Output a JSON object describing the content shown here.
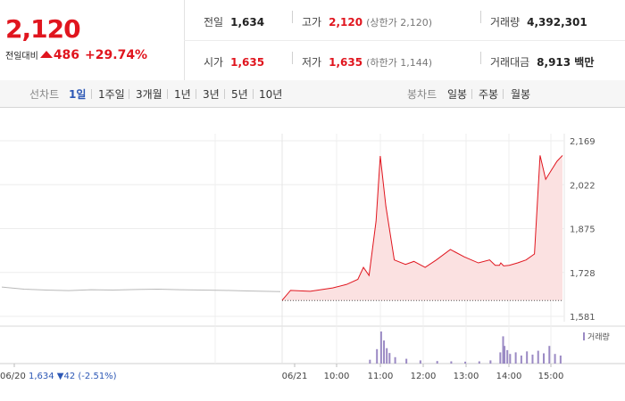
{
  "price": {
    "current": "2,120",
    "change_label": "전일대비",
    "change": "486",
    "change_pct": "+29.74%"
  },
  "stats": {
    "prev_close": {
      "label": "전일",
      "value": "1,634"
    },
    "high": {
      "label": "고가",
      "value": "2,120",
      "note": "(상한가 2,120)"
    },
    "volume": {
      "label": "거래량",
      "value": "4,392,301"
    },
    "open": {
      "label": "시가",
      "value": "1,635"
    },
    "low": {
      "label": "저가",
      "value": "1,635",
      "note": "(하한가 1,144)"
    },
    "trade_value": {
      "label": "거래대금",
      "value": "8,913 백만"
    }
  },
  "line_tabs": {
    "label": "선차트",
    "items": [
      "1일",
      "1주일",
      "3개월",
      "1년",
      "3년",
      "5년",
      "10년"
    ],
    "active": "1일"
  },
  "candle_tabs": {
    "label": "봉차트",
    "items": [
      "일봉",
      "주봉",
      "월봉"
    ]
  },
  "colors": {
    "up": "#e0151e",
    "down": "#2c57b5",
    "active_tab": "#2c57b5",
    "volume_bar": "#9b8ac4"
  },
  "chart_data": {
    "type": "line",
    "ylim": [
      1581,
      2169
    ],
    "y_ticks": [
      "2,169",
      "2,022",
      "1,875",
      "1,728",
      "1,581"
    ],
    "x_ticks": [
      "06/20",
      "06/21",
      "10:00",
      "11:00",
      "12:00",
      "13:00",
      "14:00",
      "15:00"
    ],
    "prev_day_note": {
      "value": "1,634",
      "change": "▼42",
      "pct": "(-2.51%)"
    },
    "volume_legend": "거래량",
    "base_line": 1634,
    "series": [
      {
        "name": "06/20",
        "x": [
          0,
          0.08,
          0.16,
          0.24,
          0.32,
          0.4,
          0.48,
          0.56,
          0.64,
          0.72,
          0.8,
          0.88,
          1.0
        ],
        "values": [
          1679,
          1672,
          1669,
          1667,
          1670,
          1669,
          1671,
          1672,
          1670,
          1669,
          1668,
          1666,
          1664
        ]
      },
      {
        "name": "06/21",
        "x": [
          0,
          0.03,
          0.1,
          0.18,
          0.23,
          0.27,
          0.29,
          0.31,
          0.335,
          0.35,
          0.37,
          0.4,
          0.44,
          0.47,
          0.51,
          0.55,
          0.6,
          0.65,
          0.7,
          0.74,
          0.76,
          0.775,
          0.78,
          0.79,
          0.81,
          0.84,
          0.87,
          0.9,
          0.92,
          0.94,
          0.96,
          0.98,
          1.0
        ],
        "values": [
          1635,
          1668,
          1665,
          1676,
          1688,
          1705,
          1745,
          1718,
          1900,
          2118,
          1950,
          1770,
          1755,
          1765,
          1745,
          1770,
          1805,
          1780,
          1760,
          1770,
          1752,
          1752,
          1760,
          1750,
          1752,
          1760,
          1770,
          1790,
          2120,
          2040,
          2070,
          2100,
          2120
        ]
      }
    ],
    "volume": {
      "x": [
        0.31,
        0.335,
        0.35,
        0.36,
        0.37,
        0.38,
        0.4,
        0.44,
        0.49,
        0.55,
        0.6,
        0.65,
        0.7,
        0.74,
        0.775,
        0.785,
        0.79,
        0.8,
        0.81,
        0.83,
        0.85,
        0.87,
        0.89,
        0.91,
        0.93,
        0.95,
        0.97,
        0.99
      ],
      "values": [
        0.12,
        0.45,
        1.0,
        0.72,
        0.48,
        0.33,
        0.2,
        0.15,
        0.1,
        0.08,
        0.07,
        0.06,
        0.07,
        0.1,
        0.35,
        0.85,
        0.55,
        0.42,
        0.3,
        0.35,
        0.25,
        0.38,
        0.28,
        0.4,
        0.32,
        0.55,
        0.3,
        0.25
      ]
    }
  }
}
